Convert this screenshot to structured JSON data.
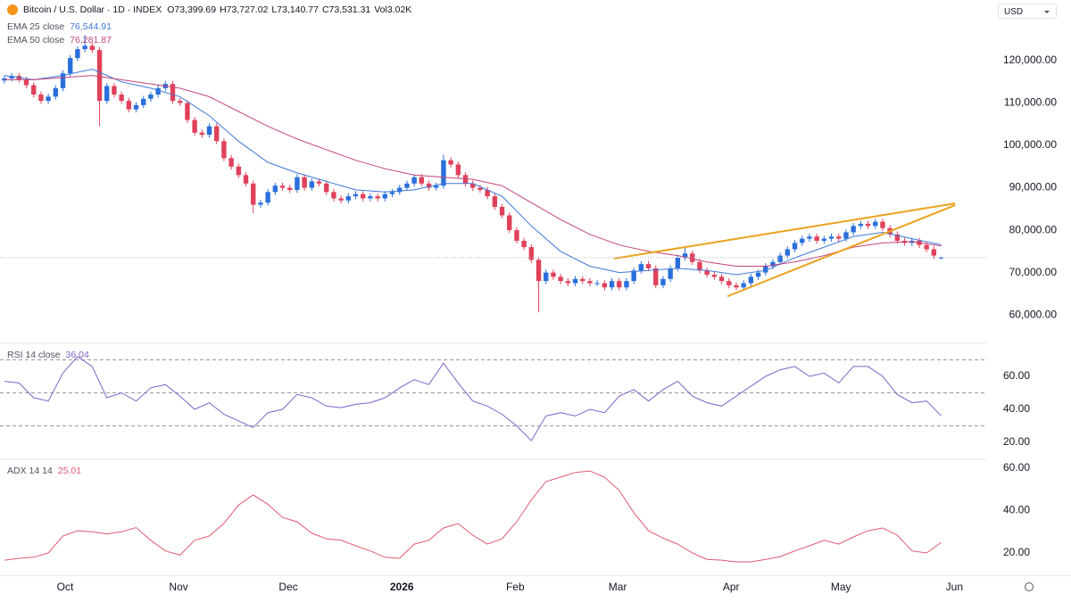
{
  "controls": {
    "currency": "USD"
  },
  "chart_data": [
    {
      "type": "candlestick",
      "title": "Bitcoin / U.S. Dollar · 1D · INDEX",
      "ohlc_labels": [
        "O73,399.69",
        "H73,727.02",
        "L73,140.77",
        "C73,531.31",
        "Vol3.02K"
      ],
      "up_color": "#2a6fdb",
      "down_color": "#e0415a",
      "xlim": [
        -1.2,
        268.3
      ],
      "xticks": [
        {
          "value": 16.6,
          "label": "Oct"
        },
        {
          "value": 47.6,
          "label": "Nov"
        },
        {
          "value": 77.6,
          "label": "Dec"
        },
        {
          "value": 108.6,
          "label": "2026"
        },
        {
          "value": 139.6,
          "label": "Feb"
        },
        {
          "value": 167.6,
          "label": "Mar"
        },
        {
          "value": 198.6,
          "label": "Apr"
        },
        {
          "value": 228.6,
          "label": "May"
        },
        {
          "value": 259.6,
          "label": "Jun"
        }
      ],
      "ylim": [
        53300,
        134300
      ],
      "yticks": [
        {
          "value": 60000,
          "label": "60,000.00"
        },
        {
          "value": 70000,
          "label": "70,000.00"
        },
        {
          "value": 80000,
          "label": "80,000.00"
        },
        {
          "value": 90000,
          "label": "90,000.00"
        },
        {
          "value": 100000,
          "label": "100,000.00"
        },
        {
          "value": 110000,
          "label": "110,000.00"
        },
        {
          "value": 120000,
          "label": "120,000.00"
        }
      ],
      "x": [
        0,
        2,
        4,
        6,
        8,
        10,
        12,
        14,
        16,
        18,
        20,
        22,
        24,
        26,
        28,
        30,
        32,
        34,
        36,
        38,
        40,
        42,
        44,
        46,
        48,
        50,
        52,
        54,
        56,
        58,
        60,
        62,
        64,
        66,
        68,
        70,
        72,
        74,
        76,
        78,
        80,
        82,
        84,
        86,
        88,
        90,
        92,
        94,
        96,
        98,
        100,
        102,
        104,
        106,
        108,
        110,
        112,
        114,
        116,
        118,
        120,
        122,
        124,
        126,
        128,
        130,
        132,
        134,
        136,
        138,
        140,
        142,
        144,
        146,
        148,
        150,
        152,
        154,
        156,
        158,
        160,
        162,
        164,
        166,
        168,
        170,
        172,
        174,
        176,
        178,
        180,
        182,
        184,
        186,
        188,
        190,
        192,
        194,
        196,
        198,
        200,
        202,
        204,
        206,
        208,
        210,
        212,
        214,
        216,
        218,
        220,
        222,
        224,
        226,
        228,
        230,
        232,
        234,
        236,
        238,
        240,
        242,
        244,
        246,
        248,
        250,
        252,
        254,
        256
      ],
      "open": [
        115300,
        115800,
        116400,
        115500,
        114200,
        112000,
        110500,
        111500,
        113500,
        117000,
        120600,
        122700,
        123500,
        122500,
        110500,
        114000,
        112000,
        110500,
        108500,
        109500,
        111000,
        112000,
        113500,
        114500,
        110500,
        110000,
        106000,
        103000,
        102500,
        104500,
        101000,
        97000,
        95000,
        93000,
        91000,
        86000,
        86500,
        89000,
        90500,
        90000,
        89500,
        92500,
        90000,
        91500,
        91000,
        89000,
        87500,
        87000,
        88000,
        88500,
        87500,
        88000,
        87500,
        88500,
        89000,
        90000,
        91000,
        92500,
        91000,
        90000,
        90500,
        96500,
        95500,
        93000,
        91000,
        90000,
        89500,
        88000,
        85500,
        83500,
        80000,
        77500,
        76000,
        73000,
        68000,
        70000,
        69000,
        68000,
        67500,
        68500,
        68000,
        67500,
        67500,
        66500,
        68000,
        66500,
        68000,
        70500,
        72000,
        71000,
        67000,
        68500,
        71000,
        73500,
        74500,
        72500,
        70500,
        69500,
        69000,
        68000,
        67000,
        66500,
        67500,
        69000,
        70000,
        71500,
        72500,
        74000,
        75500,
        77000,
        78000,
        78500,
        77500,
        78000,
        78500,
        78000,
        79500,
        81000,
        81500,
        81000,
        82000,
        80500,
        79000,
        77500,
        77000,
        77500,
        76500,
        75500,
        73399.69
      ],
      "high": [
        116500,
        117100,
        117100,
        116200,
        114900,
        112700,
        112200,
        114200,
        117700,
        121300,
        123400,
        126000,
        124200,
        123200,
        114700,
        114700,
        112700,
        111200,
        110200,
        111700,
        112700,
        114200,
        115200,
        115200,
        111200,
        110700,
        106700,
        103700,
        105200,
        105200,
        101700,
        97700,
        95700,
        93700,
        91700,
        87200,
        89700,
        91200,
        91200,
        90700,
        93200,
        93200,
        92200,
        92200,
        91700,
        89700,
        88200,
        88700,
        89200,
        89200,
        88700,
        88700,
        89200,
        89700,
        90700,
        91700,
        93200,
        93200,
        91700,
        91200,
        97800,
        97200,
        96200,
        93700,
        91700,
        90700,
        90200,
        88700,
        86200,
        84200,
        80700,
        78200,
        76700,
        73700,
        70700,
        70700,
        69700,
        68700,
        69200,
        69200,
        68700,
        68200,
        68200,
        68700,
        68700,
        68700,
        71200,
        72700,
        72700,
        71700,
        69200,
        71700,
        74200,
        75800,
        75200,
        73200,
        71200,
        70200,
        69700,
        68700,
        67700,
        68200,
        69700,
        70700,
        72200,
        73200,
        74700,
        76200,
        77700,
        78700,
        79200,
        79200,
        78700,
        79200,
        79200,
        80200,
        81700,
        82200,
        82200,
        82700,
        82700,
        81200,
        79700,
        78200,
        78200,
        78200,
        77200,
        76200,
        73727.02
      ],
      "low": [
        114600,
        115100,
        114800,
        113500,
        111300,
        109800,
        109800,
        110800,
        112800,
        116300,
        119900,
        122000,
        121800,
        104500,
        109800,
        111300,
        109800,
        107800,
        107800,
        108800,
        110300,
        111300,
        112800,
        109800,
        109300,
        105300,
        102300,
        101800,
        101800,
        100300,
        96300,
        94300,
        92300,
        90300,
        84000,
        85300,
        85800,
        88300,
        89300,
        88800,
        88800,
        89300,
        89300,
        90300,
        88300,
        86800,
        86300,
        86300,
        87300,
        86800,
        86800,
        86800,
        86800,
        87800,
        88300,
        89300,
        90300,
        90300,
        89300,
        89300,
        89800,
        94800,
        92300,
        90300,
        89300,
        88800,
        87300,
        84800,
        82800,
        79300,
        76800,
        75300,
        72300,
        60600,
        67300,
        68300,
        67300,
        66800,
        66800,
        67300,
        66800,
        66800,
        65800,
        65800,
        65800,
        65800,
        67300,
        69800,
        70300,
        66300,
        66300,
        67800,
        70300,
        72800,
        71800,
        69800,
        68800,
        68300,
        67300,
        66300,
        65800,
        65800,
        66800,
        68300,
        69300,
        70800,
        71800,
        73300,
        74800,
        76300,
        77300,
        76800,
        76800,
        77300,
        77300,
        77300,
        78800,
        80300,
        80300,
        80300,
        79800,
        78300,
        76800,
        76300,
        76300,
        75800,
        74800,
        73300,
        73140.77
      ],
      "close": [
        115800,
        116400,
        115500,
        114200,
        112000,
        110500,
        111500,
        113500,
        117000,
        120600,
        122700,
        123500,
        122500,
        110500,
        114000,
        112000,
        110500,
        108500,
        109500,
        111000,
        112000,
        113500,
        114500,
        110500,
        110000,
        106000,
        103000,
        102500,
        104500,
        101000,
        97000,
        95000,
        93000,
        91000,
        86000,
        86500,
        89000,
        90500,
        90000,
        89500,
        92500,
        90000,
        91500,
        91000,
        89000,
        87500,
        87000,
        88000,
        88500,
        87500,
        88000,
        87500,
        88500,
        89000,
        90000,
        91000,
        92500,
        91000,
        90000,
        90500,
        96500,
        95500,
        93000,
        91000,
        90000,
        89500,
        88000,
        85500,
        83500,
        80000,
        77500,
        76000,
        73000,
        68000,
        70000,
        69000,
        68000,
        67500,
        68500,
        68000,
        67500,
        67500,
        66500,
        68000,
        66500,
        68000,
        70500,
        72000,
        71000,
        67000,
        68500,
        71000,
        73500,
        74500,
        72500,
        70500,
        69500,
        69000,
        68000,
        67000,
        66500,
        67500,
        69000,
        70000,
        71500,
        72500,
        74000,
        75500,
        77000,
        78000,
        78500,
        77500,
        78000,
        78500,
        78000,
        79500,
        81000,
        81500,
        81000,
        82000,
        80500,
        79000,
        77500,
        77000,
        77500,
        76500,
        75500,
        74000,
        73531.31
      ],
      "series": [
        {
          "name": "EMA 25 close",
          "value_label": "76,544.91",
          "color": "#3f78d8",
          "x": [
            0,
            8,
            16,
            24,
            32,
            40,
            48,
            56,
            64,
            72,
            80,
            88,
            96,
            104,
            112,
            120,
            128,
            136,
            144,
            152,
            160,
            168,
            176,
            184,
            192,
            200,
            208,
            216,
            224,
            232,
            240,
            248,
            256
          ],
          "values": [
            116500,
            115500,
            116500,
            118000,
            115000,
            113500,
            111500,
            107000,
            101000,
            96000,
            93500,
            91500,
            89500,
            89000,
            89500,
            91000,
            91000,
            88000,
            81000,
            75000,
            71500,
            70000,
            70500,
            71000,
            70500,
            69500,
            70500,
            73500,
            76000,
            78500,
            79500,
            78000,
            76544.91
          ]
        },
        {
          "name": "EMA 50 close",
          "value_label": "76,281.87",
          "color": "#c2457a",
          "x": [
            0,
            8,
            16,
            24,
            32,
            40,
            48,
            56,
            64,
            72,
            80,
            88,
            96,
            104,
            112,
            120,
            128,
            136,
            144,
            152,
            160,
            168,
            176,
            184,
            192,
            200,
            208,
            216,
            224,
            232,
            240,
            248,
            256
          ],
          "values": [
            115500,
            115500,
            116000,
            116500,
            115500,
            114500,
            113500,
            111500,
            108000,
            104500,
            101500,
            99000,
            96500,
            94500,
            93000,
            92500,
            92000,
            90500,
            86500,
            82500,
            79000,
            76500,
            75000,
            74000,
            72500,
            71500,
            71500,
            72500,
            74000,
            76000,
            77000,
            77300,
            76281.87
          ]
        }
      ],
      "trendline_color": "#eca21e",
      "trendlines": [
        {
          "x": [
            166.6,
            259.8
          ],
          "y": [
            73300,
            86300
          ]
        },
        {
          "x": [
            197.6,
            259.8
          ],
          "y": [
            64400,
            85900
          ]
        }
      ]
    },
    {
      "type": "line",
      "ylim": [
        9.7,
        80
      ],
      "yticks": [
        {
          "value": 20,
          "label": "20.00"
        },
        {
          "value": 40,
          "label": "40.00"
        },
        {
          "value": 60,
          "label": "60.00"
        }
      ],
      "levels": [
        70,
        50,
        30
      ],
      "series": [
        {
          "name": "RSI 14 close",
          "value_label": "36.04",
          "color": "#7e63c9",
          "x": [
            0,
            4,
            8,
            12,
            16,
            20,
            24,
            28,
            32,
            36,
            40,
            44,
            48,
            52,
            56,
            60,
            64,
            68,
            72,
            76,
            80,
            84,
            88,
            92,
            96,
            100,
            104,
            108,
            112,
            116,
            120,
            124,
            128,
            132,
            136,
            140,
            144,
            148,
            152,
            156,
            160,
            164,
            168,
            172,
            176,
            180,
            184,
            188,
            192,
            196,
            200,
            204,
            208,
            212,
            216,
            220,
            224,
            228,
            232,
            236,
            240,
            244,
            248,
            252,
            256
          ],
          "values": [
            57,
            56,
            47,
            45,
            62,
            72,
            66,
            47,
            50,
            45,
            53,
            55,
            48,
            40,
            44,
            37,
            33,
            29,
            38,
            40,
            49,
            47,
            42,
            41,
            43,
            44,
            47,
            53,
            58,
            55,
            68,
            56,
            45,
            42,
            37,
            30,
            21,
            36,
            38,
            36,
            40,
            38,
            48,
            52,
            45,
            52,
            57,
            48,
            44,
            42,
            48,
            54,
            60,
            64,
            66,
            60,
            62,
            56,
            66,
            66,
            60,
            49,
            44,
            45,
            36.04
          ]
        }
      ]
    },
    {
      "type": "line",
      "ylim": [
        9.5,
        64.2
      ],
      "yticks": [
        {
          "value": 20,
          "label": "20.00"
        },
        {
          "value": 40,
          "label": "40.00"
        },
        {
          "value": 60,
          "label": "60.00"
        }
      ],
      "series": [
        {
          "name": "ADX 14 14",
          "value_label": "25.01",
          "color": "#e05a72",
          "x": [
            0,
            4,
            8,
            12,
            16,
            20,
            24,
            28,
            32,
            36,
            40,
            44,
            48,
            52,
            56,
            60,
            64,
            68,
            72,
            76,
            80,
            84,
            88,
            92,
            96,
            100,
            104,
            108,
            112,
            116,
            120,
            124,
            128,
            132,
            136,
            140,
            144,
            148,
            152,
            156,
            160,
            164,
            168,
            172,
            176,
            180,
            184,
            188,
            192,
            196,
            200,
            204,
            208,
            212,
            216,
            220,
            224,
            228,
            232,
            236,
            240,
            244,
            248,
            252,
            256
          ],
          "values": [
            16.6,
            17.5,
            18,
            20,
            28,
            30.5,
            30,
            29,
            30,
            32,
            26,
            21,
            19,
            26,
            28,
            34,
            42.6,
            47.4,
            43,
            36.8,
            34.7,
            29.3,
            26.7,
            26,
            23.4,
            21,
            18,
            17.5,
            24.2,
            26,
            31.8,
            33.9,
            28.4,
            24.2,
            26.7,
            34.7,
            45,
            53.7,
            55.8,
            58,
            58.7,
            55.8,
            49.5,
            39,
            30.5,
            27,
            24.2,
            20,
            17,
            16.6,
            15.8,
            15.8,
            17,
            18.3,
            21,
            23.4,
            26,
            24.2,
            27.6,
            30.5,
            31.8,
            28.4,
            21,
            20,
            25.01
          ]
        }
      ]
    }
  ]
}
